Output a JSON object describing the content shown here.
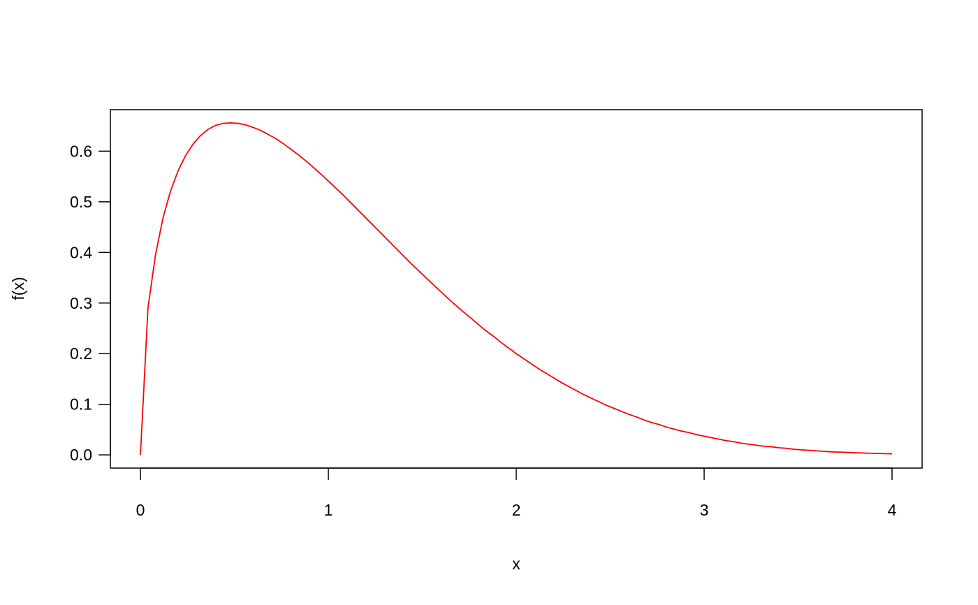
{
  "chart_data": {
    "type": "line",
    "title": "",
    "xlabel": "x",
    "ylabel": "f(x)",
    "xlim": [
      -0.16,
      4.16
    ],
    "ylim": [
      -0.026,
      0.682
    ],
    "x_ticks": [
      0,
      1,
      2,
      3,
      4
    ],
    "x_tick_labels": [
      "0",
      "1",
      "2",
      "3",
      "4"
    ],
    "y_ticks": [
      0.0,
      0.1,
      0.2,
      0.3,
      0.4,
      0.5,
      0.6
    ],
    "y_tick_labels": [
      "0.0",
      "0.1",
      "0.2",
      "0.3",
      "0.4",
      "0.5",
      "0.6"
    ],
    "grid": false,
    "line_color": "#ff0000",
    "series": [
      {
        "x": [
          0,
          0.04,
          0.08,
          0.12,
          0.16,
          0.2,
          0.24,
          0.28,
          0.32,
          0.36,
          0.4,
          0.44,
          0.48,
          0.52,
          0.56,
          0.6,
          0.64,
          0.68,
          0.72,
          0.76,
          0.8,
          0.84,
          0.88,
          0.92,
          0.96,
          1.0,
          1.04,
          1.08,
          1.12,
          1.16,
          1.2,
          1.24,
          1.28,
          1.32,
          1.36,
          1.4,
          1.44,
          1.48,
          1.52,
          1.56,
          1.6,
          1.64,
          1.68,
          1.72,
          1.76,
          1.8,
          1.84,
          1.88,
          1.92,
          1.96,
          2.0,
          2.04,
          2.08,
          2.12,
          2.16,
          2.2,
          2.24,
          2.28,
          2.32,
          2.36,
          2.4,
          2.44,
          2.48,
          2.52,
          2.56,
          2.6,
          2.64,
          2.68,
          2.72,
          2.76,
          2.8,
          2.84,
          2.88,
          2.92,
          2.96,
          3.0,
          3.04,
          3.08,
          3.12,
          3.16,
          3.2,
          3.24,
          3.28,
          3.32,
          3.36,
          3.4,
          3.44,
          3.48,
          3.52,
          3.56,
          3.6,
          3.64,
          3.68,
          3.72,
          3.76,
          3.8,
          3.84,
          3.88,
          3.92,
          3.96,
          4.0
        ],
        "values": [
          0.0,
          0.29,
          0.395,
          0.468,
          0.521,
          0.561,
          0.591,
          0.614,
          0.631,
          0.643,
          0.651,
          0.655,
          0.656,
          0.655,
          0.652,
          0.647,
          0.641,
          0.633,
          0.625,
          0.615,
          0.604,
          0.593,
          0.581,
          0.568,
          0.555,
          0.541,
          0.527,
          0.513,
          0.498,
          0.483,
          0.468,
          0.453,
          0.438,
          0.423,
          0.408,
          0.393,
          0.378,
          0.364,
          0.35,
          0.336,
          0.322,
          0.308,
          0.295,
          0.282,
          0.27,
          0.257,
          0.245,
          0.234,
          0.222,
          0.211,
          0.2,
          0.19,
          0.18,
          0.17,
          0.161,
          0.152,
          0.143,
          0.135,
          0.127,
          0.119,
          0.112,
          0.105,
          0.098,
          0.092,
          0.086,
          0.08,
          0.075,
          0.069,
          0.064,
          0.06,
          0.055,
          0.051,
          0.047,
          0.044,
          0.04,
          0.037,
          0.034,
          0.031,
          0.028,
          0.026,
          0.023,
          0.021,
          0.019,
          0.017,
          0.016,
          0.014,
          0.013,
          0.011,
          0.01,
          0.009,
          0.008,
          0.007,
          0.006,
          0.0056,
          0.005,
          0.0043,
          0.0038,
          0.0033,
          0.0029,
          0.0025,
          0.0022
        ]
      }
    ]
  }
}
